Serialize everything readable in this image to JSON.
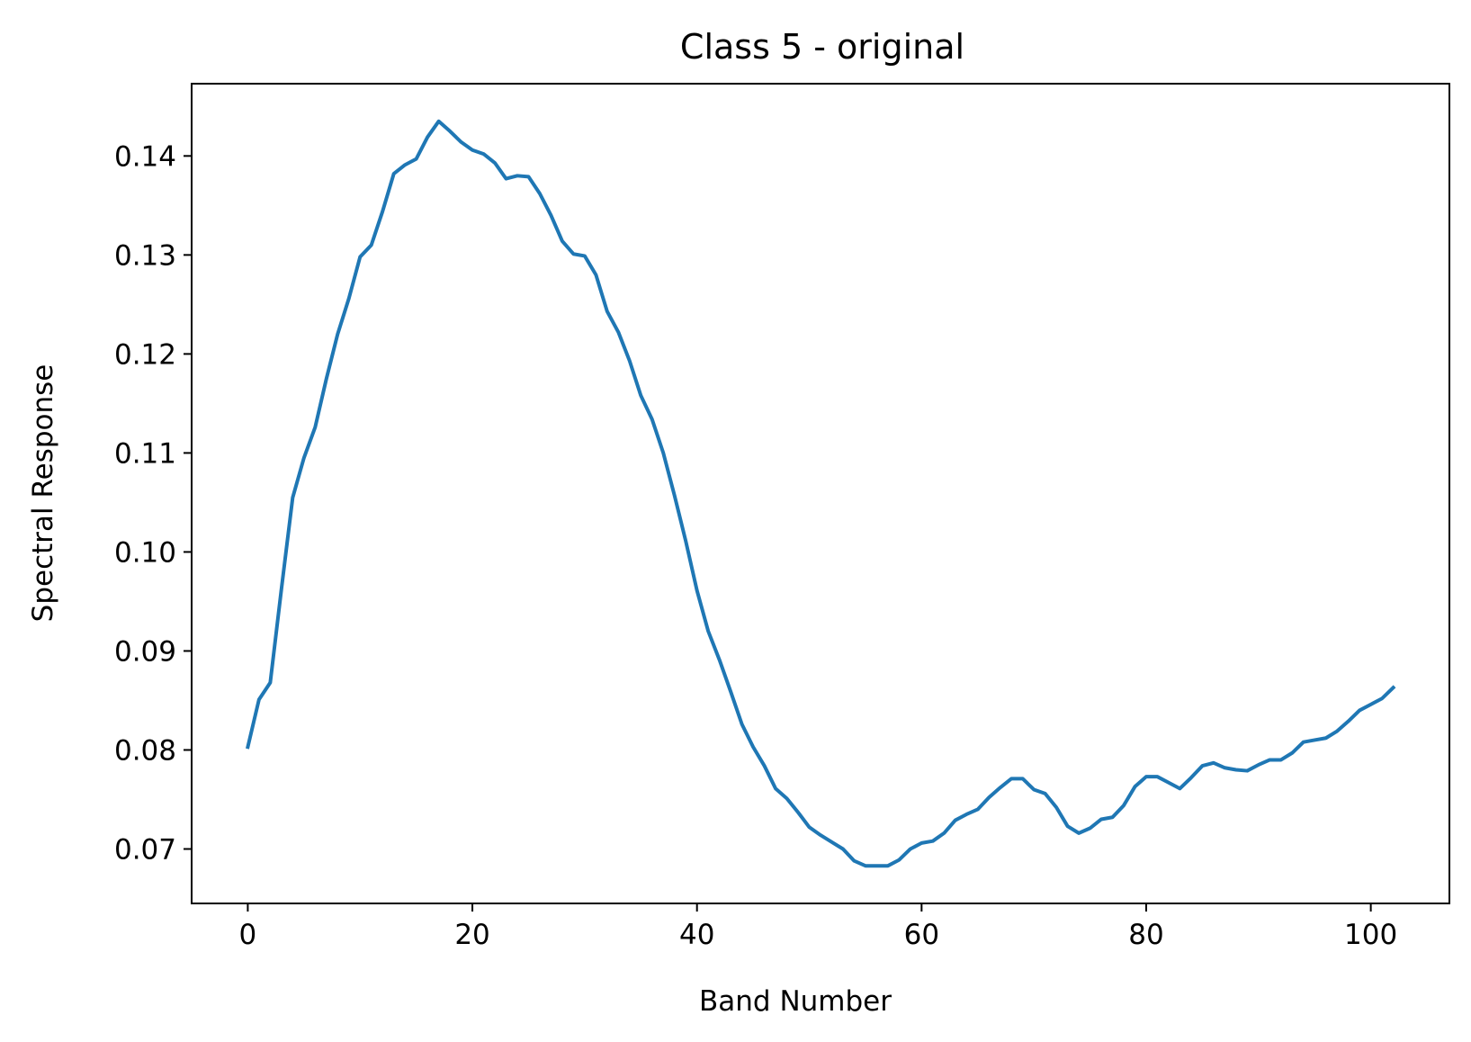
{
  "chart_data": {
    "type": "line",
    "title": "Class 5 - original",
    "xlabel": "Band Number",
    "ylabel": "Spectral Response",
    "xlim": [
      -5,
      107
    ],
    "ylim": [
      0.0645,
      0.1473
    ],
    "xticks": [
      0,
      20,
      40,
      60,
      80,
      100
    ],
    "xtick_labels": [
      "0",
      "20",
      "40",
      "60",
      "80",
      "100"
    ],
    "yticks": [
      0.07,
      0.08,
      0.09,
      0.1,
      0.11,
      0.12,
      0.13,
      0.14
    ],
    "ytick_labels": [
      "0.07",
      "0.08",
      "0.09",
      "0.10",
      "0.11",
      "0.12",
      "0.13",
      "0.14"
    ],
    "grid": false,
    "series": [
      {
        "color": "#1f77b4",
        "x": [
          0,
          1,
          2,
          3,
          4,
          5,
          6,
          7,
          8,
          9,
          10,
          11,
          12,
          13,
          14,
          15,
          16,
          17,
          18,
          19,
          20,
          21,
          22,
          23,
          24,
          25,
          26,
          27,
          28,
          29,
          30,
          31,
          32,
          33,
          34,
          35,
          36,
          37,
          38,
          39,
          40,
          41,
          42,
          43,
          44,
          45,
          46,
          47,
          48,
          49,
          50,
          51,
          52,
          53,
          54,
          55,
          56,
          57,
          58,
          59,
          60,
          61,
          62,
          63,
          64,
          65,
          66,
          67,
          68,
          69,
          70,
          71,
          72,
          73,
          74,
          75,
          76,
          77,
          78,
          79,
          80,
          81,
          82,
          83,
          84,
          85,
          86,
          87,
          88,
          89,
          90,
          91,
          92,
          93,
          94,
          95,
          96,
          97,
          98,
          99,
          100,
          101,
          102
        ],
        "y": [
          0.0803,
          0.0851,
          0.0868,
          0.0963,
          0.1055,
          0.1095,
          0.1126,
          0.1175,
          0.122,
          0.1256,
          0.1298,
          0.131,
          0.1344,
          0.1382,
          0.1391,
          0.1397,
          0.1419,
          0.1435,
          0.1425,
          0.1414,
          0.1406,
          0.1402,
          0.1393,
          0.1377,
          0.138,
          0.1379,
          0.1362,
          0.134,
          0.1314,
          0.1301,
          0.1299,
          0.128,
          0.1243,
          0.1222,
          0.1193,
          0.1158,
          0.1134,
          0.11,
          0.1057,
          0.1011,
          0.0961,
          0.092,
          0.0891,
          0.0859,
          0.0826,
          0.0803,
          0.0784,
          0.0761,
          0.0751,
          0.0737,
          0.0722,
          0.0714,
          0.0707,
          0.07,
          0.0688,
          0.0683,
          0.0683,
          0.0683,
          0.0689,
          0.07,
          0.0706,
          0.0708,
          0.0716,
          0.0729,
          0.0735,
          0.074,
          0.0752,
          0.0762,
          0.0771,
          0.0771,
          0.076,
          0.0756,
          0.0742,
          0.0723,
          0.0716,
          0.0721,
          0.073,
          0.0732,
          0.0744,
          0.0763,
          0.0773,
          0.0773,
          0.0767,
          0.0761,
          0.0772,
          0.0784,
          0.0787,
          0.0782,
          0.078,
          0.0779,
          0.0785,
          0.079,
          0.079,
          0.0797,
          0.0808,
          0.081,
          0.0812,
          0.0819,
          0.0829,
          0.084,
          0.0846,
          0.0852,
          0.0863
        ]
      }
    ]
  }
}
